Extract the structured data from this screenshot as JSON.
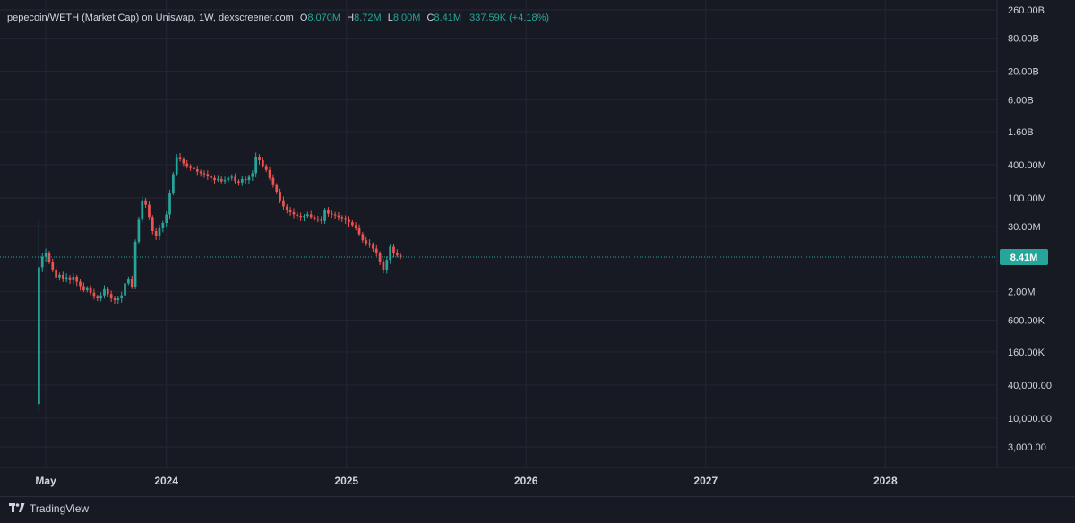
{
  "header": {
    "symbol": "pepecoin/WETH (Market Cap) on Uniswap, 1W, dexscreener.com",
    "o_key": "O",
    "o_val": "8.070M",
    "h_key": "H",
    "h_val": "8.72M",
    "l_key": "L",
    "l_val": "8.00M",
    "c_key": "C",
    "c_val": "8.41M",
    "change": "337.59K (+4.18%)"
  },
  "footer": {
    "brand": "TradingView",
    "logo_icon": "tradingview-logo-icon"
  },
  "colors": {
    "background": "#181a23",
    "grid": "#232632",
    "up": "#26a69a",
    "down": "#ef5350",
    "price_line": "#26a69a",
    "text": "#d1d4dc"
  },
  "chart_data": {
    "type": "candlestick",
    "title": "",
    "xlabel": "",
    "ylabel": "",
    "y_scale": "log",
    "grid": true,
    "x_ticks": [
      "May",
      "2024",
      "2025",
      "2026",
      "2027",
      "2028"
    ],
    "x_tick_dates": [
      "2023-05-01",
      "2024-01-01",
      "2025-01-01",
      "2026-01-01",
      "2027-01-01",
      "2028-01-01"
    ],
    "x_range": [
      "2023-01-28",
      "2028-08-15"
    ],
    "y_ticks": [
      "260.00B",
      "80.00B",
      "20.00B",
      "6.00B",
      "1.60B",
      "400.00M",
      "100.00M",
      "30.00M",
      "2.00M",
      "600.00K",
      "160.00K",
      "40,000.00",
      "10,000.00",
      "3,000.00"
    ],
    "y_tick_values": [
      260000000000,
      80000000000,
      20000000000,
      6000000000,
      1600000000,
      400000000,
      100000000,
      30000000,
      2000000,
      600000,
      160000,
      40000,
      10000,
      3000
    ],
    "last_price_label": "8.41M",
    "last_price": 8410000,
    "series": [
      {
        "start_date": "2023-04-17",
        "interval_days": 7,
        "ohlc_order": [
          "open",
          "high",
          "low",
          "close"
        ],
        "closes": [
          5500000,
          8500000,
          10000000,
          7000000,
          5000000,
          3600000,
          4000000,
          3400000,
          3600000,
          3200000,
          3700000,
          3000000,
          2500000,
          2100000,
          2300000,
          1900000,
          1600000,
          1500000,
          1700000,
          2200000,
          1800000,
          1500000,
          1400000,
          1500000,
          1700000,
          2800000,
          3300000,
          2400000,
          16000000,
          40000000,
          90000000,
          75000000,
          45000000,
          25000000,
          20000000,
          28000000,
          35000000,
          50000000,
          120000000,
          270000000,
          550000000,
          500000000,
          420000000,
          380000000,
          350000000,
          330000000,
          300000000,
          280000000,
          270000000,
          250000000,
          230000000,
          210000000,
          220000000,
          200000000,
          210000000,
          230000000,
          240000000,
          200000000,
          190000000,
          220000000,
          210000000,
          240000000,
          280000000,
          560000000,
          480000000,
          380000000,
          320000000,
          230000000,
          170000000,
          130000000,
          90000000,
          70000000,
          60000000,
          55000000,
          50000000,
          47000000,
          45000000,
          47000000,
          50000000,
          45000000,
          42000000,
          40000000,
          38000000,
          60000000,
          52000000,
          50000000,
          48000000,
          45000000,
          43000000,
          40000000,
          36000000,
          32000000,
          28000000,
          22000000,
          17000000,
          15000000,
          14000000,
          12000000,
          10000000,
          7000000,
          5000000,
          7500000,
          13000000,
          10000000,
          9000000,
          8410000
        ],
        "wicks": [
          [
            18000,
            40000000,
            13000,
            5500000
          ],
          [
            5500000,
            10000000,
            4500000,
            8500000
          ],
          [
            8500000,
            12000000,
            7000000,
            10000000
          ]
        ]
      }
    ]
  }
}
